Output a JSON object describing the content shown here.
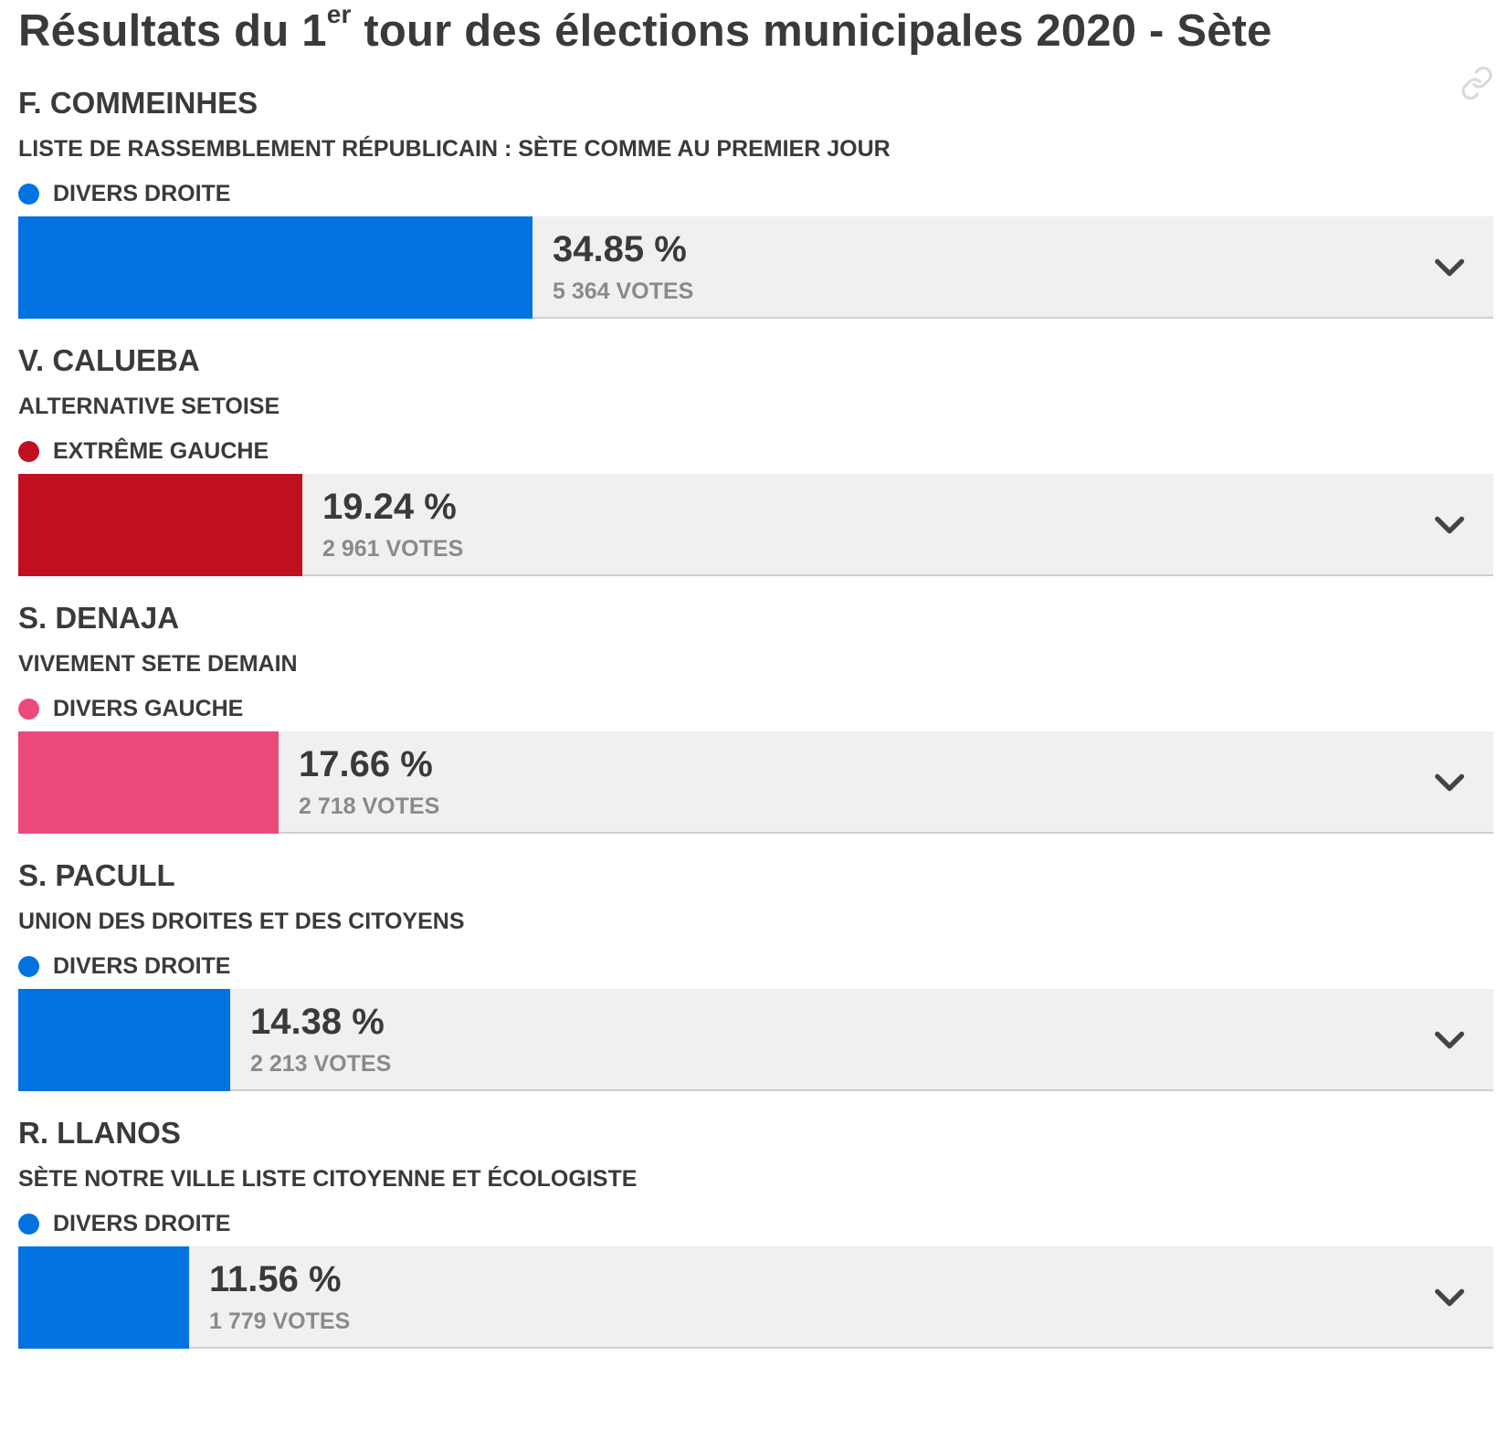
{
  "title": {
    "main": "Résultats du 1",
    "sup": "er",
    "rest": " tour des élections municipales 2020 - Sète"
  },
  "colors": {
    "divers_droite": "#0073e0",
    "extreme_gauche": "#c0101f",
    "divers_gauche": "#ea4a7a",
    "bar_bg": "#f0f0f0"
  },
  "icons": {
    "link": "link-icon",
    "expand": "chevron-down-icon"
  },
  "candidates": [
    {
      "name": "F. COMMEINHES",
      "list": "LISTE DE RASSEMBLEMENT RÉPUBLICAIN : SÈTE COMME AU PREMIER JOUR",
      "nuance": "DIVERS DROITE",
      "color": "#0073e0",
      "percent_value": 34.85,
      "percent": "34.85 %",
      "votes": "5 364 VOTES"
    },
    {
      "name": "V. CALUEBA",
      "list": "ALTERNATIVE SETOISE",
      "nuance": "EXTRÊME GAUCHE",
      "color": "#c0101f",
      "percent_value": 19.24,
      "percent": "19.24 %",
      "votes": "2 961 VOTES"
    },
    {
      "name": "S. DENAJA",
      "list": "VIVEMENT SETE DEMAIN",
      "nuance": "DIVERS GAUCHE",
      "color": "#ea4a7a",
      "percent_value": 17.66,
      "percent": "17.66 %",
      "votes": "2 718 VOTES"
    },
    {
      "name": "S. PACULL",
      "list": "UNION DES DROITES ET DES CITOYENS",
      "nuance": "DIVERS DROITE",
      "color": "#0073e0",
      "percent_value": 14.38,
      "percent": "14.38 %",
      "votes": "2 213 VOTES"
    },
    {
      "name": "R. LLANOS",
      "list": "SÈTE NOTRE VILLE LISTE CITOYENNE ET ÉCOLOGISTE",
      "nuance": "DIVERS DROITE",
      "color": "#0073e0",
      "percent_value": 11.56,
      "percent": "11.56 %",
      "votes": "1 779 VOTES"
    }
  ]
}
